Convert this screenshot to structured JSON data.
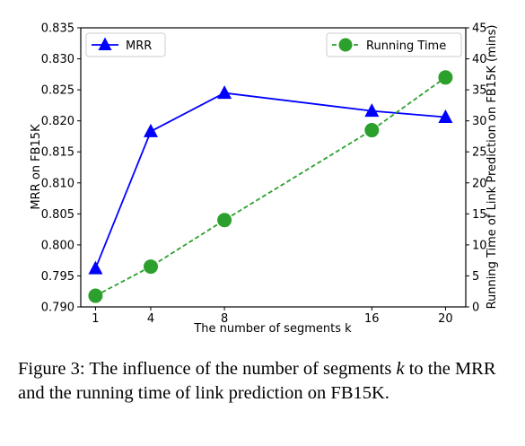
{
  "chart_data": {
    "type": "line",
    "x": [
      1,
      4,
      8,
      16,
      20
    ],
    "xticks": [
      "1",
      "4",
      "8",
      "16",
      "20"
    ],
    "xlabel": "The number of segments k",
    "ylabel_left": "MRR on FB15K",
    "ylabel_right": "Running Time of Link Prediction on FB15K (mins)",
    "ylim_left": [
      0.79,
      0.835
    ],
    "ylim_right": [
      0,
      45
    ],
    "yticks_left": [
      "0.790",
      "0.795",
      "0.800",
      "0.805",
      "0.810",
      "0.815",
      "0.820",
      "0.825",
      "0.830",
      "0.835"
    ],
    "yticks_right": [
      "0",
      "5",
      "10",
      "15",
      "20",
      "25",
      "30",
      "35",
      "40",
      "45"
    ],
    "grid": false,
    "series": [
      {
        "name": "MRR",
        "axis": "left",
        "color": "#0000ff",
        "linestyle": "solid",
        "marker": "triangle",
        "values": [
          0.7962,
          0.8183,
          0.8245,
          0.8216,
          0.8206
        ]
      },
      {
        "name": "Running Time",
        "axis": "right",
        "color": "#2ca02c",
        "linestyle": "dashed",
        "marker": "circle",
        "values": [
          1.8,
          6.5,
          14.0,
          28.5,
          37.0
        ]
      }
    ],
    "legend": [
      "top-left",
      "top-right"
    ]
  },
  "caption": {
    "prefix": "Figure 3:  The influence of the number of segments ",
    "variable": "k",
    "suffix": " to the MRR and the running time of link prediction on FB15K."
  }
}
